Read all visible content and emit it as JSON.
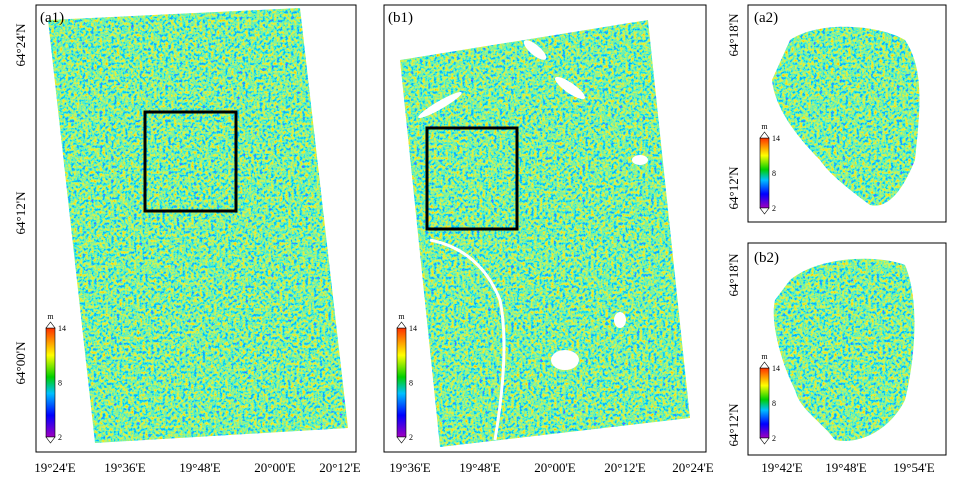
{
  "panels": [
    {
      "label": "(a1)",
      "xticks": [
        "19°24'E",
        "19°36'E",
        "19°48'E",
        "20°00'E",
        "20°12'E"
      ],
      "yticks": [
        "64°24'N",
        "64°12'N",
        "64°00'N"
      ],
      "colorbar": {
        "unit": "m",
        "ticks": [
          "14",
          "8",
          "2"
        ]
      }
    },
    {
      "label": "(b1)",
      "xticks": [
        "19°36'E",
        "19°48'E",
        "20°00'E",
        "20°12'E",
        "20°24'E"
      ],
      "yticks": [],
      "colorbar": {
        "unit": "m",
        "ticks": [
          "14",
          "8",
          "2"
        ]
      }
    },
    {
      "label": "(a2)",
      "xticks": [],
      "yticks": [
        "64°18'N",
        "64°12'N"
      ],
      "colorbar": {
        "unit": "m",
        "ticks": [
          "14",
          "8",
          "2"
        ]
      }
    },
    {
      "label": "(b2)",
      "xticks": [
        "19°42'E",
        "19°48'E",
        "19°54'E"
      ],
      "yticks": [
        "64°18'N",
        "64°12'N"
      ],
      "colorbar": {
        "unit": "m",
        "ticks": [
          "14",
          "8",
          "2"
        ]
      }
    }
  ]
}
